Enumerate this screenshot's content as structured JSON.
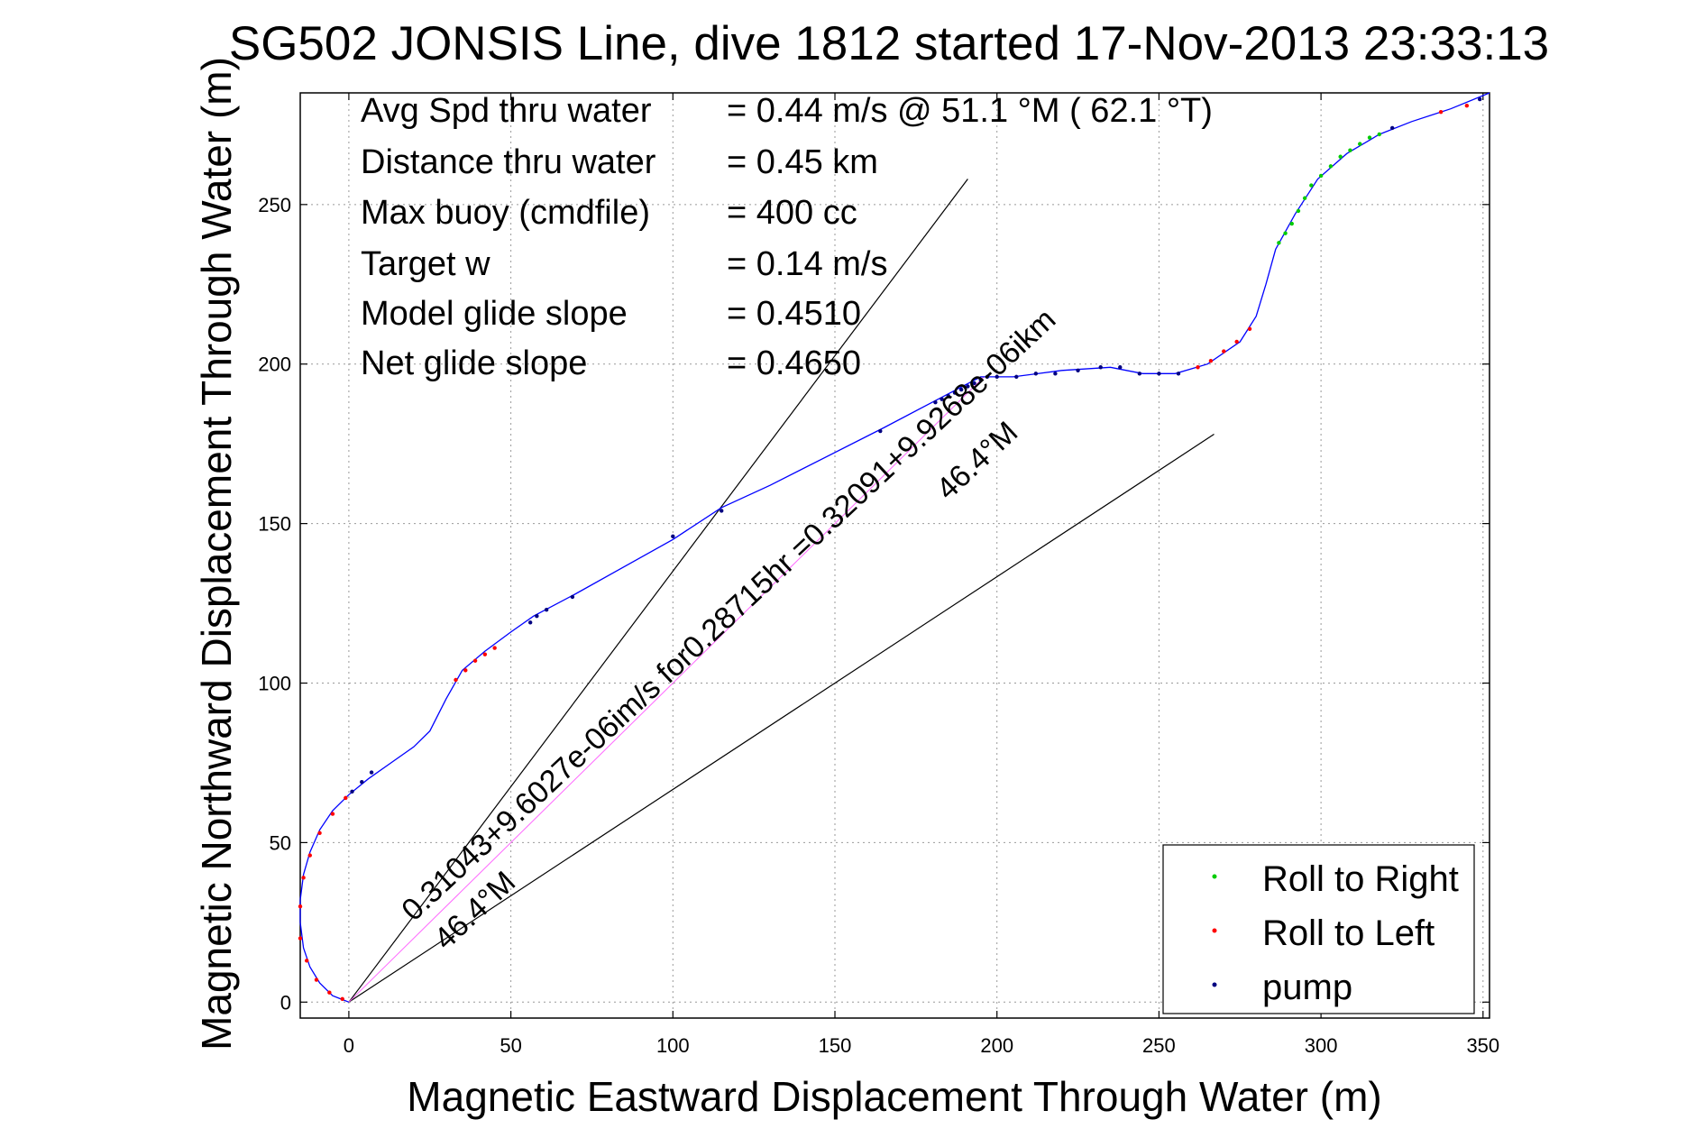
{
  "chart_data": {
    "type": "line",
    "title": "SG502 JONSIS Line, dive 1812 started 17-Nov-2013 23:33:13",
    "xlabel": "Magnetic Eastward Displacement Through Water (m)",
    "ylabel": "Magnetic Northward Displacement Through Water (m)",
    "xlim": [
      -15,
      352
    ],
    "ylim": [
      -5,
      285
    ],
    "xticks": [
      0,
      50,
      100,
      150,
      200,
      250,
      300,
      350
    ],
    "yticks": [
      0,
      50,
      100,
      150,
      200,
      250
    ],
    "grid": true,
    "legend_position": "bottom-right",
    "info_box": [
      {
        "label": "Avg Spd thru water",
        "value": "=  0.44 m/s @  51.1 °M ( 62.1 °T)"
      },
      {
        "label": "Distance thru water",
        "value": "=  0.45 km"
      },
      {
        "label": "Max buoy (cmdfile)",
        "value": "= 400 cc"
      },
      {
        "label": "Target w",
        "value": "= 0.14 m/s"
      },
      {
        "label": "Model glide slope",
        "value": "= 0.4510"
      },
      {
        "label": "Net glide slope",
        "value": "= 0.4650"
      }
    ],
    "annotations": [
      {
        "text": "0.31043+9.6027e-06im/s for0.28715hr =0.32091+9.9268e-06ikm",
        "anchor_x": 20,
        "anchor_y": 25,
        "angle_deg": -43
      },
      {
        "text": "46.4°M",
        "anchor_x": 30,
        "anchor_y": 16,
        "angle_deg": -43
      },
      {
        "text": "46.4°M",
        "anchor_x": 185,
        "anchor_y": 157,
        "angle_deg": -43
      }
    ],
    "reference_lines": [
      {
        "name": "upper",
        "points": [
          [
            0,
            0
          ],
          [
            191,
            258
          ]
        ]
      },
      {
        "name": "lower",
        "points": [
          [
            0,
            0
          ],
          [
            267,
            178
          ]
        ]
      },
      {
        "name": "center",
        "points": [
          [
            0,
            0
          ],
          [
            196,
            196
          ]
        ]
      }
    ],
    "track": [
      [
        0,
        0
      ],
      [
        -5,
        2
      ],
      [
        -9,
        6
      ],
      [
        -12,
        11
      ],
      [
        -14,
        17
      ],
      [
        -15,
        25
      ],
      [
        -15,
        32
      ],
      [
        -14,
        40
      ],
      [
        -12,
        47
      ],
      [
        -9,
        54
      ],
      [
        -5,
        60
      ],
      [
        0,
        65
      ],
      [
        6,
        70
      ],
      [
        13,
        75
      ],
      [
        20,
        80
      ],
      [
        25,
        85
      ],
      [
        30,
        95
      ],
      [
        35,
        104
      ],
      [
        42,
        110
      ],
      [
        50,
        116
      ],
      [
        57,
        121
      ],
      [
        70,
        128
      ],
      [
        100,
        145
      ],
      [
        115,
        155
      ],
      [
        130,
        162
      ],
      [
        165,
        180
      ],
      [
        180,
        188
      ],
      [
        195,
        196
      ],
      [
        205,
        196
      ],
      [
        220,
        198
      ],
      [
        235,
        199
      ],
      [
        245,
        197
      ],
      [
        255,
        197
      ],
      [
        265,
        200
      ],
      [
        275,
        207
      ],
      [
        280,
        215
      ],
      [
        283,
        225
      ],
      [
        286,
        236
      ],
      [
        292,
        247
      ],
      [
        299,
        258
      ],
      [
        308,
        266
      ],
      [
        318,
        272
      ],
      [
        328,
        276
      ],
      [
        340,
        280
      ],
      [
        352,
        285
      ]
    ],
    "series": [
      {
        "name": "Roll to Right",
        "color": "#00cc00",
        "x": [
          287,
          289,
          291,
          293,
          295,
          297,
          300,
          303,
          306,
          309,
          312,
          315,
          318
        ],
        "y": [
          238,
          241,
          244,
          248,
          252,
          256,
          259,
          262,
          265,
          267,
          269,
          271,
          272
        ]
      },
      {
        "name": "Roll to Left",
        "color": "#ff0000",
        "x": [
          -2,
          -6,
          -10,
          -13,
          -15,
          -15,
          -14,
          -12,
          -9,
          -5,
          -1,
          33,
          36,
          39,
          42,
          45,
          262,
          266,
          270,
          274,
          278,
          337,
          345
        ],
        "y": [
          1,
          3,
          7,
          13,
          20,
          30,
          39,
          46,
          53,
          59,
          64,
          101,
          104,
          107,
          109,
          111,
          199,
          201,
          204,
          207,
          211,
          279,
          281
        ]
      },
      {
        "name": "pump",
        "color": "#000080",
        "x": [
          1,
          4,
          7,
          56,
          58,
          61,
          69,
          100,
          115,
          164,
          181,
          183,
          185,
          187,
          189,
          191,
          193,
          195,
          197,
          200,
          206,
          212,
          218,
          225,
          232,
          238,
          244,
          250,
          256,
          322,
          349
        ],
        "y": [
          66,
          69,
          72,
          119,
          121,
          123,
          127,
          146,
          154,
          179,
          188,
          189,
          190,
          191,
          192,
          193,
          194,
          195,
          196,
          196,
          196,
          197,
          197,
          198,
          199,
          199,
          197,
          197,
          197,
          274,
          283
        ]
      }
    ]
  }
}
